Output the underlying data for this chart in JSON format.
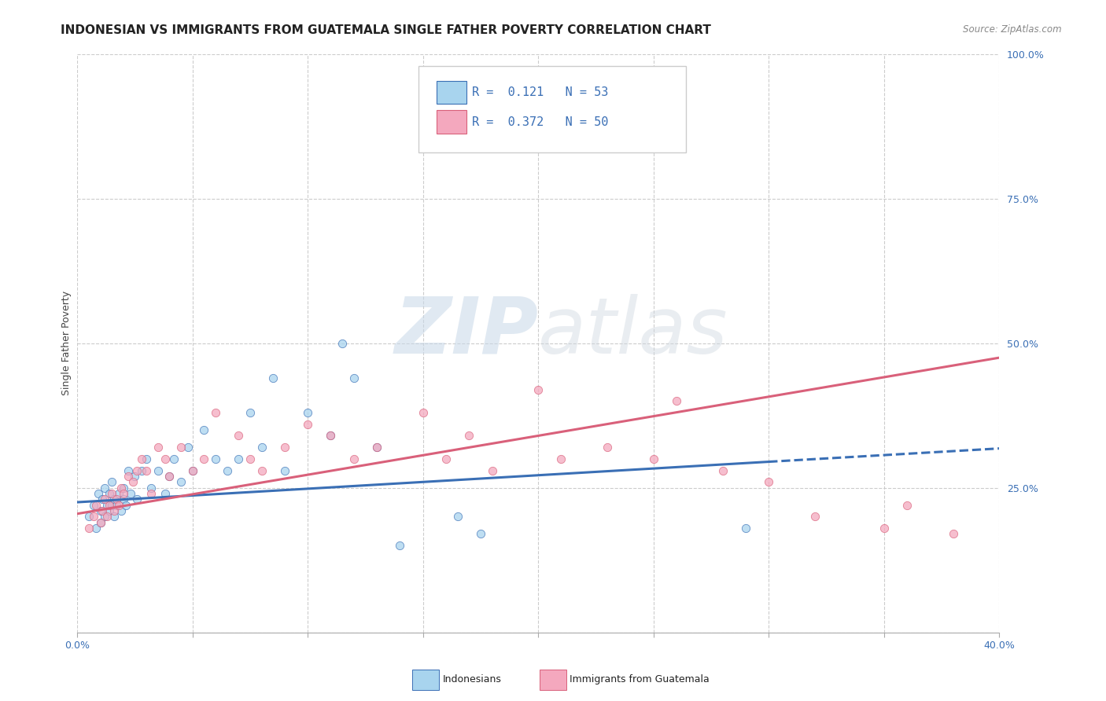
{
  "title": "INDONESIAN VS IMMIGRANTS FROM GUATEMALA SINGLE FATHER POVERTY CORRELATION CHART",
  "source_text": "Source: ZipAtlas.com",
  "ylabel": "Single Father Poverty",
  "xlim": [
    0.0,
    0.4
  ],
  "ylim": [
    0.0,
    1.0
  ],
  "ytick_values": [
    0.0,
    0.25,
    0.5,
    0.75,
    1.0
  ],
  "ytick_labels": [
    "",
    "25.0%",
    "50.0%",
    "75.0%",
    "100.0%"
  ],
  "xtick_values": [
    0.0,
    0.05,
    0.1,
    0.15,
    0.2,
    0.25,
    0.3,
    0.35,
    0.4
  ],
  "xtick_labels": [
    "0.0%",
    "",
    "",
    "",
    "",
    "",
    "",
    "",
    "40.0%"
  ],
  "legend_R1": "R =  0.121",
  "legend_N1": "N = 53",
  "legend_R2": "R =  0.372",
  "legend_N2": "N = 50",
  "color_blue": "#A8D4EE",
  "color_pink": "#F4A8BE",
  "color_blue_line": "#3A6FB5",
  "color_pink_line": "#D9607A",
  "scatter_blue_x": [
    0.005,
    0.007,
    0.008,
    0.009,
    0.01,
    0.01,
    0.011,
    0.012,
    0.012,
    0.013,
    0.014,
    0.014,
    0.015,
    0.015,
    0.016,
    0.016,
    0.017,
    0.018,
    0.019,
    0.02,
    0.02,
    0.021,
    0.022,
    0.023,
    0.025,
    0.026,
    0.028,
    0.03,
    0.032,
    0.035,
    0.038,
    0.04,
    0.042,
    0.045,
    0.048,
    0.05,
    0.055,
    0.06,
    0.065,
    0.07,
    0.075,
    0.08,
    0.085,
    0.09,
    0.1,
    0.11,
    0.115,
    0.12,
    0.13,
    0.14,
    0.165,
    0.175,
    0.29
  ],
  "scatter_blue_y": [
    0.2,
    0.22,
    0.18,
    0.24,
    0.19,
    0.21,
    0.23,
    0.2,
    0.25,
    0.22,
    0.21,
    0.24,
    0.22,
    0.26,
    0.2,
    0.23,
    0.22,
    0.24,
    0.21,
    0.23,
    0.25,
    0.22,
    0.28,
    0.24,
    0.27,
    0.23,
    0.28,
    0.3,
    0.25,
    0.28,
    0.24,
    0.27,
    0.3,
    0.26,
    0.32,
    0.28,
    0.35,
    0.3,
    0.28,
    0.3,
    0.38,
    0.32,
    0.44,
    0.28,
    0.38,
    0.34,
    0.5,
    0.44,
    0.32,
    0.15,
    0.2,
    0.17,
    0.18
  ],
  "scatter_pink_x": [
    0.005,
    0.007,
    0.008,
    0.01,
    0.011,
    0.012,
    0.013,
    0.014,
    0.015,
    0.016,
    0.017,
    0.018,
    0.019,
    0.02,
    0.022,
    0.024,
    0.026,
    0.028,
    0.03,
    0.032,
    0.035,
    0.038,
    0.04,
    0.045,
    0.05,
    0.055,
    0.06,
    0.07,
    0.075,
    0.08,
    0.09,
    0.1,
    0.11,
    0.12,
    0.13,
    0.15,
    0.16,
    0.17,
    0.18,
    0.2,
    0.21,
    0.23,
    0.25,
    0.26,
    0.28,
    0.3,
    0.32,
    0.35,
    0.36,
    0.38
  ],
  "scatter_pink_y": [
    0.18,
    0.2,
    0.22,
    0.19,
    0.21,
    0.23,
    0.2,
    0.22,
    0.24,
    0.21,
    0.23,
    0.22,
    0.25,
    0.24,
    0.27,
    0.26,
    0.28,
    0.3,
    0.28,
    0.24,
    0.32,
    0.3,
    0.27,
    0.32,
    0.28,
    0.3,
    0.38,
    0.34,
    0.3,
    0.28,
    0.32,
    0.36,
    0.34,
    0.3,
    0.32,
    0.38,
    0.3,
    0.34,
    0.28,
    0.42,
    0.3,
    0.32,
    0.3,
    0.4,
    0.28,
    0.26,
    0.2,
    0.18,
    0.22,
    0.17
  ],
  "trend_blue_x1": 0.0,
  "trend_blue_y1": 0.225,
  "trend_blue_x2": 0.3,
  "trend_blue_y2": 0.295,
  "trend_blue_dash_x1": 0.3,
  "trend_blue_dash_y1": 0.295,
  "trend_blue_dash_x2": 0.4,
  "trend_blue_dash_y2": 0.318,
  "trend_pink_x1": 0.0,
  "trend_pink_y1": 0.205,
  "trend_pink_x2": 0.4,
  "trend_pink_y2": 0.475,
  "watermark_zip": "ZIP",
  "watermark_atlas": "atlas",
  "background_color": "#ffffff",
  "grid_color": "#cccccc",
  "title_fontsize": 11,
  "axis_label_fontsize": 9,
  "tick_fontsize": 9
}
